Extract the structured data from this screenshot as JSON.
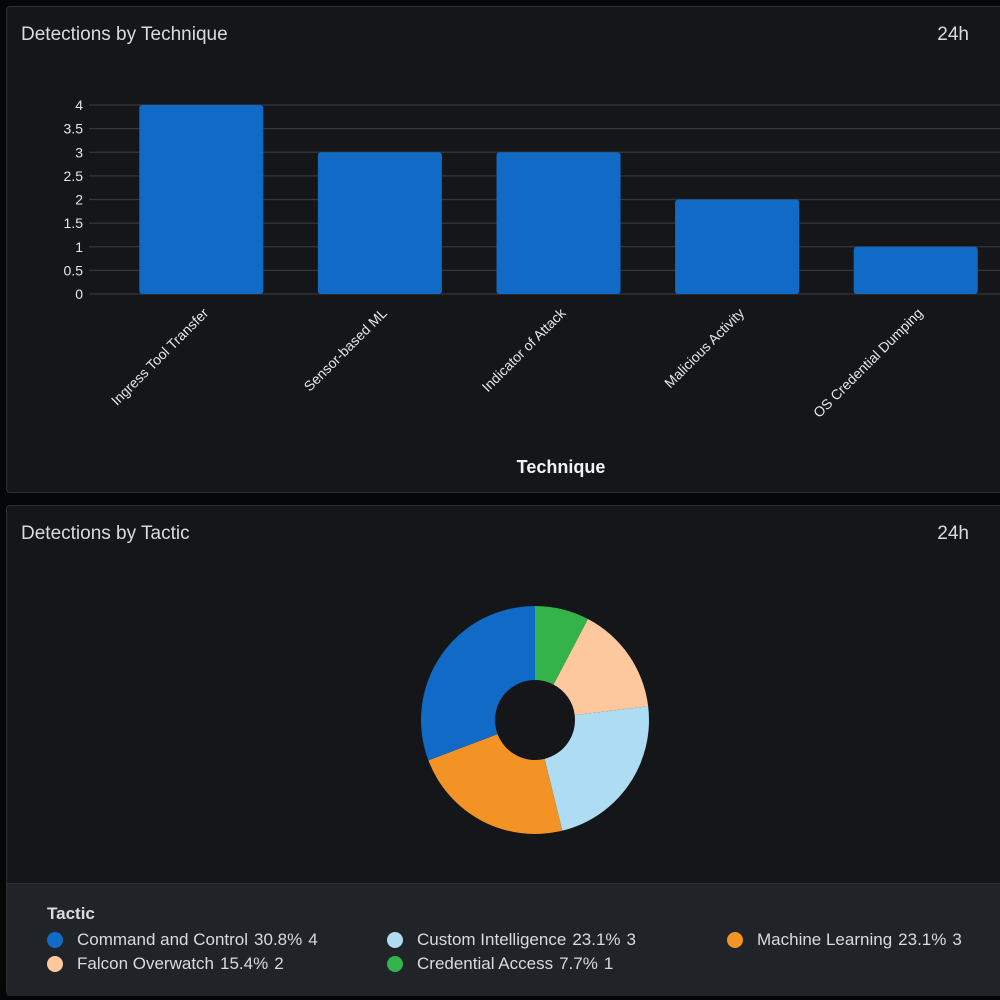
{
  "panels": {
    "technique": {
      "title": "Detections by Technique",
      "range": "24h"
    },
    "tactic": {
      "title": "Detections by Tactic",
      "range": "24h"
    }
  },
  "chart_data": [
    {
      "type": "bar",
      "title": "Detections by Technique",
      "xlabel": "Technique",
      "ylabel": "",
      "categories": [
        "Ingress Tool Transfer",
        "Sensor-based ML",
        "Indicator of Attack",
        "Malicious Activity",
        "OS Credential Dumping"
      ],
      "values": [
        4,
        3,
        3,
        2,
        1
      ],
      "ylim": [
        0,
        4
      ],
      "yticks": [
        "0",
        "0.5",
        "1",
        "1.5",
        "2",
        "2.5",
        "3",
        "3.5",
        "4"
      ],
      "grid": true,
      "color": "#116ac6"
    },
    {
      "type": "pie",
      "title": "Detections by Tactic",
      "donut": true,
      "legend_title": "Tactic",
      "legend_position": "bottom",
      "slices": [
        {
          "label": "Command and Control",
          "percent": "30.8%",
          "value": 4,
          "color": "#116ac6"
        },
        {
          "label": "Custom Intelligence",
          "percent": "23.1%",
          "value": 3,
          "color": "#aedcf2"
        },
        {
          "label": "Machine Learning",
          "percent": "23.1%",
          "value": 3,
          "color": "#f39325"
        },
        {
          "label": "Falcon Overwatch",
          "percent": "15.4%",
          "value": 2,
          "color": "#fec89e"
        },
        {
          "label": "Credential Access",
          "percent": "7.7%",
          "value": 1,
          "color": "#34b34a"
        }
      ],
      "draw_order": [
        "Credential Access",
        "Falcon Overwatch",
        "Custom Intelligence",
        "Machine Learning",
        "Command and Control"
      ]
    }
  ]
}
